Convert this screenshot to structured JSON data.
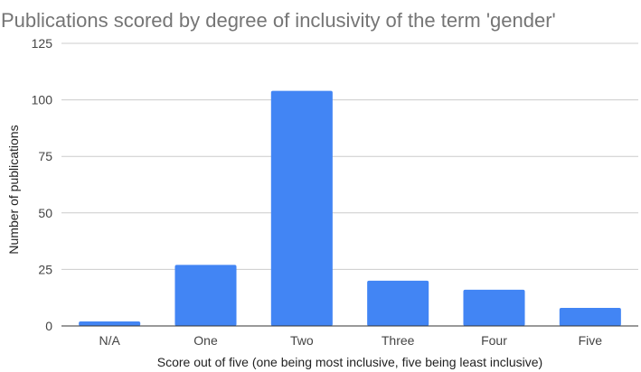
{
  "chart_data": {
    "type": "bar",
    "title": "Publications scored by degree of inclusivity of the term 'gender'",
    "xlabel": "Score out of five (one being most inclusive, five being least inclusive)",
    "ylabel": "Number of publications",
    "categories": [
      "N/A",
      "One",
      "Two",
      "Three",
      "Four",
      "Five"
    ],
    "values": [
      2,
      27,
      104,
      20,
      16,
      8
    ],
    "ylim": [
      0,
      125
    ],
    "yticks": [
      0,
      25,
      50,
      75,
      100,
      125
    ],
    "grid": true,
    "legend": "none",
    "bar_color": "#4285f4"
  }
}
